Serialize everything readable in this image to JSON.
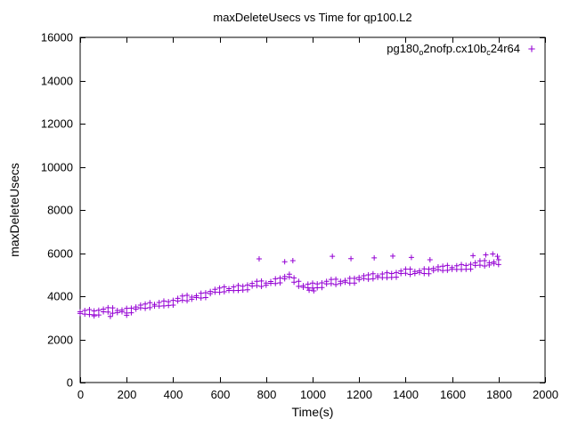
{
  "title": "maxDeleteUsecs vs Time for qp100.L2",
  "xlabel": "Time(s)",
  "ylabel": "maxDeleteUsecs",
  "legend": {
    "plain": "pg180_o2nofp.cx10b_c24r64",
    "parts": [
      {
        "text": "pg180"
      },
      {
        "text": "o",
        "sub": true
      },
      {
        "text": "2nofp.cx10b",
        "sub": false
      },
      {
        "text": "c",
        "sub": true
      },
      {
        "text": "24r64"
      }
    ],
    "marker_glyph": "+"
  },
  "colors": {
    "marker": "#9400d3",
    "axis": "#000000",
    "background": "#ffffff"
  },
  "chart_data": {
    "type": "scatter",
    "title": "maxDeleteUsecs vs Time for qp100.L2",
    "xlabel": "Time(s)",
    "ylabel": "maxDeleteUsecs",
    "xlim": [
      0,
      2000
    ],
    "ylim": [
      0,
      16000
    ],
    "xticks": [
      0,
      200,
      400,
      600,
      800,
      1000,
      1200,
      1400,
      1600,
      1800,
      2000
    ],
    "yticks": [
      0,
      2000,
      4000,
      6000,
      8000,
      10000,
      12000,
      14000,
      16000
    ],
    "grid": false,
    "legend_position": "top-right",
    "marker": "plus",
    "series": [
      {
        "name": "pg180_o2nofp.cx10b_c24r64",
        "color": "#9400d3",
        "points": [
          [
            0,
            3280
          ],
          [
            0,
            3200
          ],
          [
            20,
            3170
          ],
          [
            20,
            3340
          ],
          [
            40,
            3380
          ],
          [
            40,
            3150
          ],
          [
            60,
            3140
          ],
          [
            60,
            3320
          ],
          [
            80,
            3350
          ],
          [
            80,
            3130
          ],
          [
            100,
            3280
          ],
          [
            100,
            3400
          ],
          [
            120,
            3470
          ],
          [
            120,
            3270
          ],
          [
            140,
            3210
          ],
          [
            140,
            3460
          ],
          [
            160,
            3340
          ],
          [
            160,
            3240
          ],
          [
            180,
            3280
          ],
          [
            180,
            3360
          ],
          [
            200,
            3440
          ],
          [
            200,
            3220
          ],
          [
            220,
            3230
          ],
          [
            220,
            3450
          ],
          [
            240,
            3500
          ],
          [
            240,
            3400
          ],
          [
            260,
            3460
          ],
          [
            260,
            3590
          ],
          [
            280,
            3640
          ],
          [
            280,
            3440
          ],
          [
            300,
            3470
          ],
          [
            300,
            3700
          ],
          [
            320,
            3620
          ],
          [
            320,
            3540
          ],
          [
            340,
            3540
          ],
          [
            340,
            3710
          ],
          [
            360,
            3780
          ],
          [
            360,
            3550
          ],
          [
            380,
            3570
          ],
          [
            380,
            3750
          ],
          [
            400,
            3810
          ],
          [
            400,
            3590
          ],
          [
            420,
            3780
          ],
          [
            420,
            3900
          ],
          [
            440,
            4010
          ],
          [
            440,
            3810
          ],
          [
            460,
            3790
          ],
          [
            460,
            4040
          ],
          [
            480,
            3960
          ],
          [
            480,
            3860
          ],
          [
            500,
            3940
          ],
          [
            500,
            4020
          ],
          [
            520,
            4140
          ],
          [
            520,
            3920
          ],
          [
            540,
            3940
          ],
          [
            540,
            4160
          ],
          [
            560,
            4220
          ],
          [
            560,
            4120
          ],
          [
            580,
            4190
          ],
          [
            580,
            4320
          ],
          [
            600,
            4380
          ],
          [
            600,
            4180
          ],
          [
            620,
            4205
          ],
          [
            620,
            4435
          ],
          [
            640,
            4350
          ],
          [
            640,
            4270
          ],
          [
            660,
            4265
          ],
          [
            660,
            4435
          ],
          [
            680,
            4500
          ],
          [
            680,
            4270
          ],
          [
            700,
            4285
          ],
          [
            700,
            4465
          ],
          [
            720,
            4520
          ],
          [
            720,
            4300
          ],
          [
            740,
            4475
          ],
          [
            740,
            4595
          ],
          [
            760,
            4690
          ],
          [
            760,
            4490
          ],
          [
            780,
            4455
          ],
          [
            780,
            4705
          ],
          [
            800,
            4610
          ],
          [
            800,
            4510
          ],
          [
            820,
            4600
          ],
          [
            820,
            4680
          ],
          [
            840,
            4810
          ],
          [
            840,
            4590
          ],
          [
            860,
            4620
          ],
          [
            860,
            4840
          ],
          [
            880,
            4910
          ],
          [
            880,
            4810
          ],
          [
            900,
            4890
          ],
          [
            900,
            5020
          ],
          [
            920,
            4850
          ],
          [
            920,
            4650
          ],
          [
            940,
            4460
          ],
          [
            940,
            4690
          ],
          [
            960,
            4490
          ],
          [
            960,
            4410
          ],
          [
            980,
            4390
          ],
          [
            980,
            4560
          ],
          [
            1000,
            4610
          ],
          [
            1000,
            4380
          ],
          [
            1020,
            4390
          ],
          [
            1020,
            4570
          ],
          [
            1040,
            4620
          ],
          [
            1040,
            4400
          ],
          [
            1060,
            4570
          ],
          [
            1060,
            4690
          ],
          [
            1080,
            4780
          ],
          [
            1080,
            4580
          ],
          [
            1100,
            4540
          ],
          [
            1100,
            4790
          ],
          [
            1120,
            4690
          ],
          [
            1120,
            4590
          ],
          [
            1140,
            4650
          ],
          [
            1140,
            4730
          ],
          [
            1160,
            4830
          ],
          [
            1160,
            4610
          ],
          [
            1180,
            4610
          ],
          [
            1180,
            4830
          ],
          [
            1200,
            4870
          ],
          [
            1200,
            4770
          ],
          [
            1220,
            4820
          ],
          [
            1220,
            4950
          ],
          [
            1240,
            4990
          ],
          [
            1240,
            4790
          ],
          [
            1260,
            4810
          ],
          [
            1260,
            5040
          ],
          [
            1280,
            4950
          ],
          [
            1280,
            4870
          ],
          [
            1300,
            4860
          ],
          [
            1300,
            5030
          ],
          [
            1320,
            5090
          ],
          [
            1320,
            4860
          ],
          [
            1340,
            4870
          ],
          [
            1340,
            5050
          ],
          [
            1360,
            5100
          ],
          [
            1360,
            4880
          ],
          [
            1380,
            5050
          ],
          [
            1380,
            5170
          ],
          [
            1400,
            5260
          ],
          [
            1400,
            5060
          ],
          [
            1420,
            5010
          ],
          [
            1420,
            5260
          ],
          [
            1440,
            5150
          ],
          [
            1440,
            5050
          ],
          [
            1460,
            5100
          ],
          [
            1460,
            5180
          ],
          [
            1480,
            5270
          ],
          [
            1480,
            5050
          ],
          [
            1500,
            5040
          ],
          [
            1500,
            5260
          ],
          [
            1520,
            5290
          ],
          [
            1520,
            5190
          ],
          [
            1540,
            5230
          ],
          [
            1540,
            5360
          ],
          [
            1560,
            5390
          ],
          [
            1560,
            5190
          ],
          [
            1580,
            5200
          ],
          [
            1580,
            5430
          ],
          [
            1600,
            5330
          ],
          [
            1600,
            5250
          ],
          [
            1620,
            5240
          ],
          [
            1620,
            5410
          ],
          [
            1640,
            5470
          ],
          [
            1640,
            5240
          ],
          [
            1660,
            5250
          ],
          [
            1660,
            5430
          ],
          [
            1680,
            5480
          ],
          [
            1680,
            5260
          ],
          [
            1700,
            5430
          ],
          [
            1700,
            5550
          ],
          [
            1720,
            5640
          ],
          [
            1720,
            5440
          ],
          [
            1740,
            5400
          ],
          [
            1740,
            5650
          ],
          [
            1760,
            5550
          ],
          [
            1760,
            5450
          ],
          [
            1780,
            5510
          ],
          [
            1780,
            5590
          ],
          [
            1800,
            5690
          ],
          [
            1800,
            5470
          ],
          [
            60,
            3090
          ],
          [
            130,
            3060
          ],
          [
            200,
            3120
          ],
          [
            985,
            4280
          ],
          [
            1005,
            4250
          ],
          [
            770,
            5730
          ],
          [
            880,
            5600
          ],
          [
            915,
            5650
          ],
          [
            1085,
            5850
          ],
          [
            1165,
            5740
          ],
          [
            1265,
            5780
          ],
          [
            1345,
            5860
          ],
          [
            1425,
            5800
          ],
          [
            1505,
            5690
          ],
          [
            1690,
            5880
          ],
          [
            1745,
            5920
          ],
          [
            1775,
            5960
          ],
          [
            1795,
            5850
          ]
        ]
      }
    ]
  }
}
